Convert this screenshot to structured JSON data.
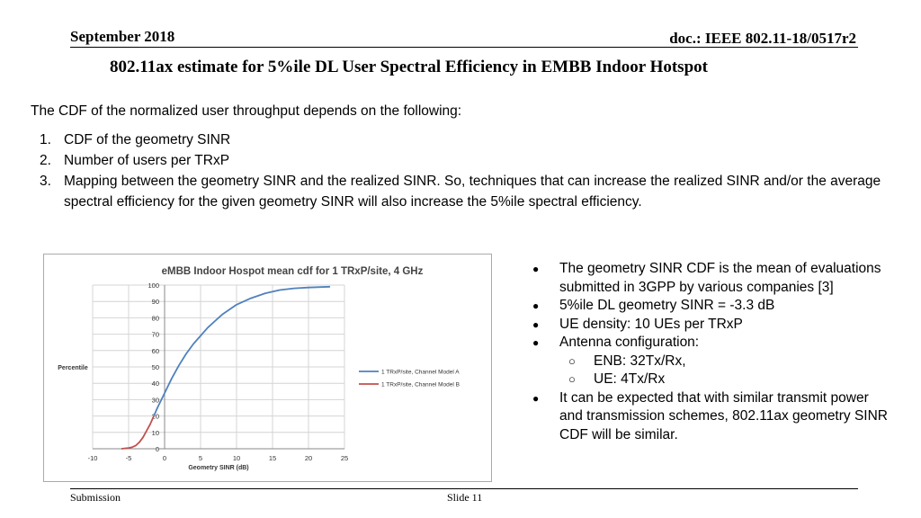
{
  "header": {
    "date": "September  2018",
    "doc": "doc.: IEEE 802.11-18/0517r2"
  },
  "title": "802.11ax estimate for 5%ile DL User Spectral Efficiency in EMBB Indoor Hotspot",
  "intro": "The CDF of the normalized user throughput depends on the following:",
  "factors": [
    {
      "num": "1.",
      "text": "CDF of the geometry SINR"
    },
    {
      "num": "2.",
      "text": "Number of users per TRxP"
    },
    {
      "num": "3.",
      "text": "Mapping between the geometry SINR and the realized SINR. So, techniques that can increase the realized SINR and/or the average spectral efficiency for the given geometry SINR will also increase the 5%ile spectral efficiency."
    }
  ],
  "bullets": [
    "The geometry SINR CDF is the mean of evaluations submitted in 3GPP by various companies  [3]",
    "5%ile DL geometry SINR = -3.3 dB",
    "UE density: 10 UEs per TRxP",
    "Antenna configuration:",
    "It can be expected that with similar transmit power and transmission schemes, 802.11ax geometry SINR CDF will be similar."
  ],
  "antenna_sub": [
    "ENB: 32Tx/Rx,",
    "UE: 4Tx/Rx"
  ],
  "footer": {
    "left": "Submission",
    "slide": "Slide 11"
  },
  "chart_data": {
    "type": "line",
    "title": "eMBB Indoor Hospot mean cdf for 1 TRxP/site, 4 GHz",
    "xlabel": "Geometry SINR (dB)",
    "ylabel": "Percentile",
    "xlim": [
      -10,
      25
    ],
    "ylim": [
      0,
      100
    ],
    "xticks": [
      "-10",
      "-5",
      "0",
      "5",
      "10",
      "15",
      "20",
      "25"
    ],
    "yticks": [
      "0",
      "10",
      "20",
      "30",
      "40",
      "50",
      "60",
      "70",
      "80",
      "90",
      "100"
    ],
    "grid": true,
    "legend_position": "right",
    "series": [
      {
        "name": "1 TRxP/site, Channel  Model A",
        "color": "#4f81bd",
        "x": [
          -1.5,
          -1,
          0,
          1,
          2,
          3,
          4,
          5,
          6,
          7,
          8,
          9,
          10,
          12,
          14,
          16,
          18,
          20,
          23
        ],
        "y": [
          20,
          25,
          34,
          43,
          51,
          58,
          64,
          69,
          74,
          78,
          82,
          85,
          88,
          92,
          95,
          97,
          98,
          98.5,
          99
        ]
      },
      {
        "name": "1 TRxP/site, Channel  Model B",
        "color": "#c0504d",
        "x": [
          -6,
          -5,
          -4.5,
          -4,
          -3.5,
          -3,
          -2.5,
          -2,
          -1.5
        ],
        "y": [
          0,
          0.5,
          1,
          2,
          4,
          7,
          11,
          15,
          20
        ]
      }
    ]
  }
}
